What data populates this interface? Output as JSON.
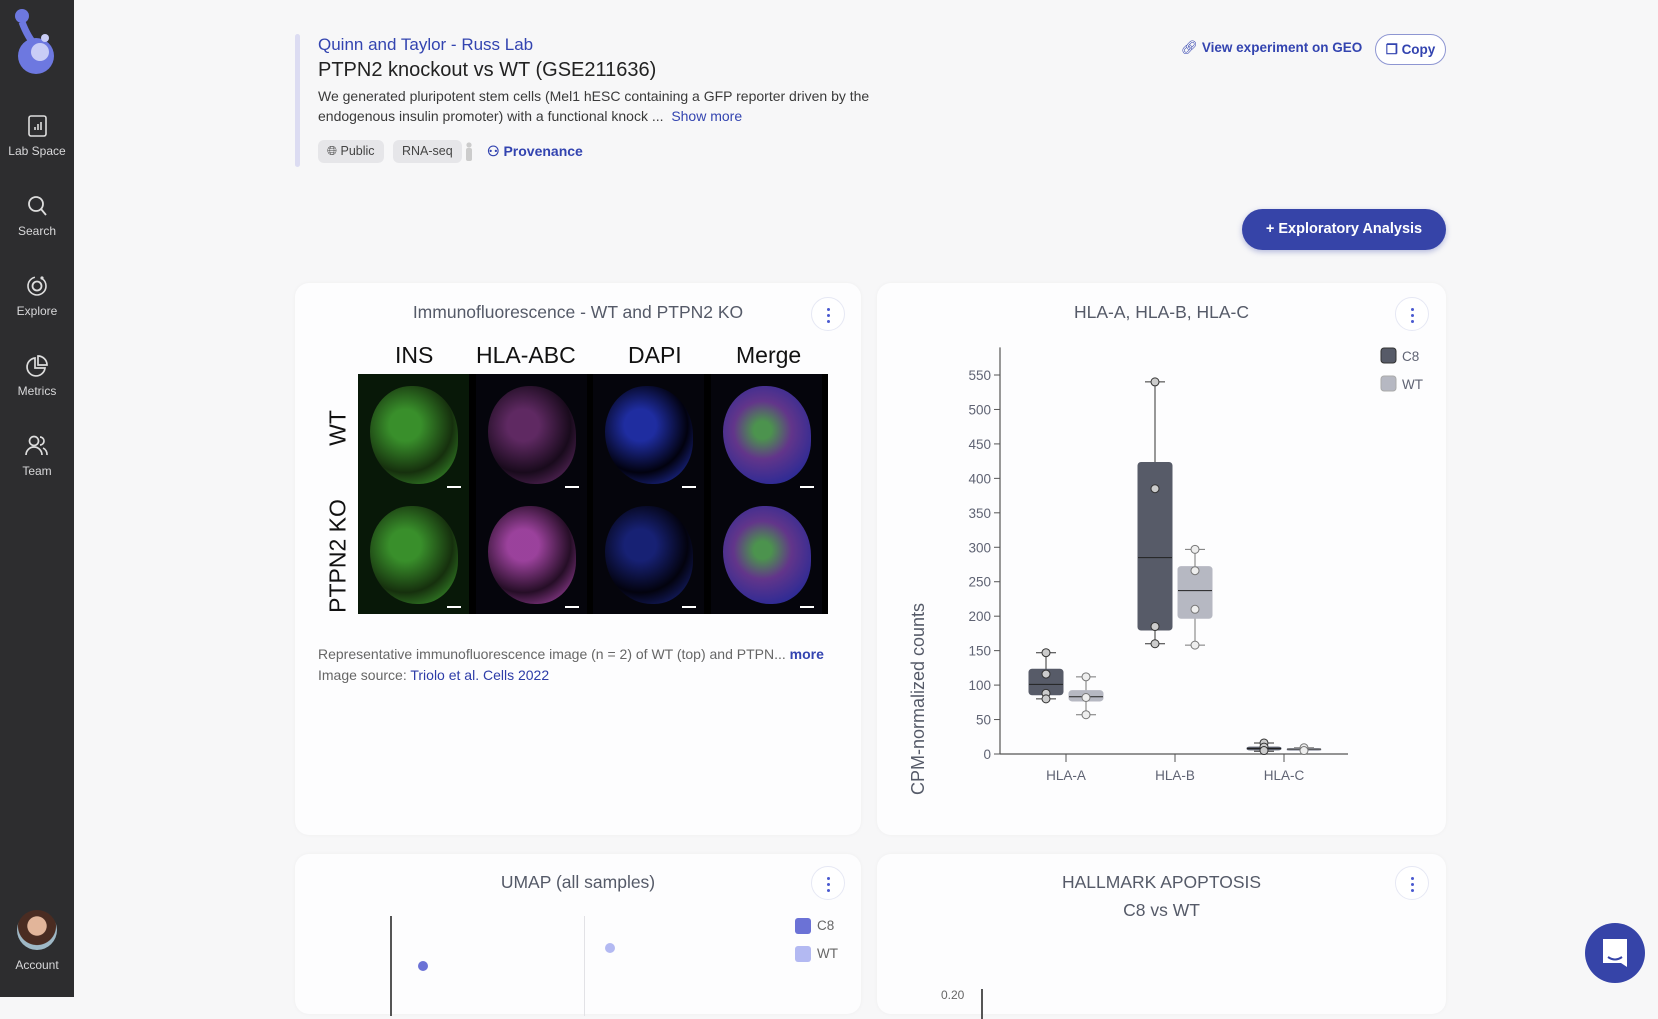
{
  "sidebar": {
    "items": [
      {
        "label": "Lab Space",
        "icon": "lab-space-icon"
      },
      {
        "label": "Search",
        "icon": "search-icon"
      },
      {
        "label": "Explore",
        "icon": "explore-icon"
      },
      {
        "label": "Metrics",
        "icon": "metrics-icon"
      },
      {
        "label": "Team",
        "icon": "team-icon"
      }
    ],
    "account": "Account"
  },
  "header": {
    "lab": "Quinn and Taylor - Russ Lab",
    "title": "PTPN2 knockout vs WT (GSE211636)",
    "description_line1": "We generated pluripotent stem cells (Mel1 hESC containing a GFP reporter driven by the",
    "description_line2": "endogenous insulin promoter) with a functional knock ...",
    "show_more": "Show more",
    "tags": [
      "Public",
      "RNA-seq"
    ],
    "provenance": "Provenance",
    "geo_link": "View experiment on GEO",
    "copy": "Copy"
  },
  "actions": {
    "exploratory": "+ Exploratory Analysis"
  },
  "colors": {
    "accent": "#3644a8",
    "c8": "#575b68",
    "wt": "#b6b8c2",
    "umap_c8": "#6b72d6",
    "umap_wt": "#b3b9f2"
  },
  "cards": {
    "if": {
      "title": "Immunofluorescence - WT and PTPN2 KO",
      "columns": [
        "INS",
        "HLA-ABC",
        "DAPI",
        "Merge"
      ],
      "rows": [
        "WT",
        "PTPN2 KO"
      ],
      "caption": "Representative immunofluorescence image (n = 2) of WT (top) and PTPN...",
      "more": "more",
      "source_label": "Image source:",
      "source_link": "Triolo et al. Cells 2022"
    },
    "umap": {
      "title": "UMAP (all samples)",
      "legend": [
        "C8",
        "WT"
      ]
    },
    "apoptosis": {
      "title": "HALLMARK APOPTOSIS",
      "subtitle": "C8 vs WT",
      "partial_tick": "0.20"
    }
  },
  "chart_data": {
    "type": "box",
    "title": "HLA-A, HLA-B, HLA-C",
    "ylabel": "CPM-normalized counts",
    "categories": [
      "HLA-A",
      "HLA-B",
      "HLA-C"
    ],
    "ylim": [
      0,
      590
    ],
    "yticks": [
      0,
      50,
      100,
      150,
      200,
      250,
      300,
      350,
      400,
      450,
      500,
      550
    ],
    "legend_position": "top-right",
    "series": [
      {
        "name": "C8",
        "boxes": [
          {
            "min": 80,
            "q1": 86,
            "median": 101,
            "q3": 123,
            "max": 147,
            "points": [
              147,
              116,
              88,
              80
            ]
          },
          {
            "min": 160,
            "q1": 180,
            "median": 285,
            "q3": 423,
            "max": 540,
            "points": [
              540,
              385,
              185,
              160
            ]
          },
          {
            "min": 4,
            "q1": 6,
            "median": 8,
            "q3": 10,
            "max": 16,
            "points": [
              16,
              10,
              5
            ]
          }
        ]
      },
      {
        "name": "WT",
        "boxes": [
          {
            "min": 57,
            "q1": 77,
            "median": 83,
            "q3": 92,
            "max": 112,
            "points": [
              112,
              82,
              57
            ]
          },
          {
            "min": 158,
            "q1": 197,
            "median": 237,
            "q3": 272,
            "max": 297,
            "points": [
              297,
              266,
              210,
              158
            ]
          },
          {
            "min": 5,
            "q1": 6,
            "median": 7,
            "q3": 8,
            "max": 9,
            "points": [
              9,
              5
            ]
          }
        ]
      }
    ]
  }
}
